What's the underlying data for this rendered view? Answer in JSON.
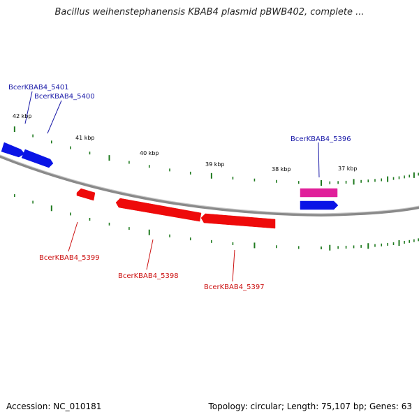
{
  "title": "Bacillus weihenstephanensis KBAB4 plasmid pBWB402, complete ...",
  "footer": {
    "accession": "Accession: NC_010181",
    "summary": "Topology: circular; Length: 75,107 bp; Genes: 63"
  },
  "colors": {
    "forward_gene": "#0a14e6",
    "reverse_gene": "#ee0a0a",
    "highlight_gene": "#e0209a",
    "tick": "#1f7a1f",
    "backbone": "#8a8a8a",
    "forward_label": "#1a1aa8",
    "reverse_label": "#cc1111"
  },
  "axis": {
    "ticks": [
      "42 kbp",
      "41 kbp",
      "40 kbp",
      "39 kbp",
      "38 kbp",
      "37 kbp"
    ]
  },
  "genes": [
    {
      "name": "BcerKBAB4_5401",
      "strand": "forward"
    },
    {
      "name": "BcerKBAB4_5400",
      "strand": "forward"
    },
    {
      "name": "BcerKBAB4_5399",
      "strand": "reverse"
    },
    {
      "name": "BcerKBAB4_5398",
      "strand": "reverse"
    },
    {
      "name": "BcerKBAB4_5397",
      "strand": "reverse"
    },
    {
      "name": "BcerKBAB4_5396",
      "strand": "forward"
    }
  ]
}
